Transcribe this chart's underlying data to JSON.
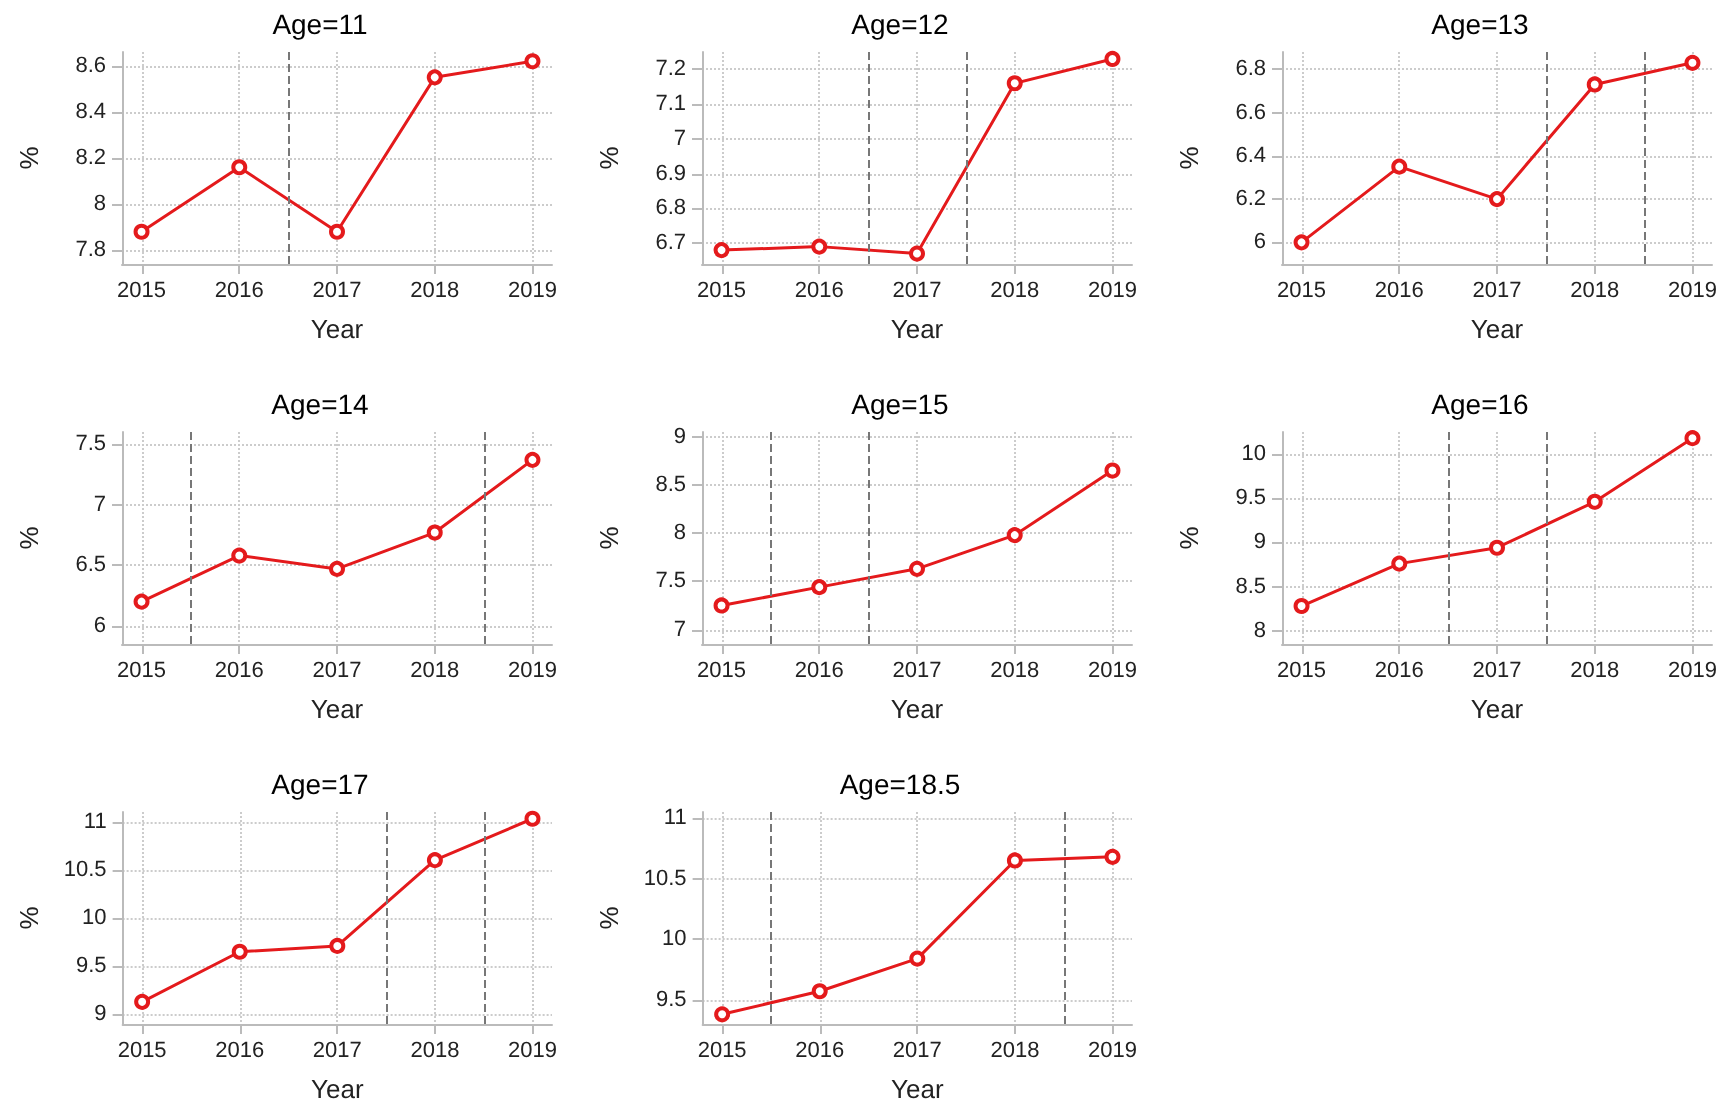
{
  "chart_data": [
    {
      "type": "line",
      "title": "Age=11",
      "xlabel": "Year",
      "ylabel": "%",
      "x": [
        2015,
        2016,
        2017,
        2018,
        2019
      ],
      "series": [
        {
          "color": "#e41a1c",
          "values": [
            7.88,
            8.16,
            7.88,
            8.55,
            8.62
          ]
        }
      ],
      "xlim": [
        2014.8,
        2019.2
      ],
      "xticks": [
        2015,
        2016,
        2017,
        2018,
        2019
      ],
      "ylim": [
        7.74,
        8.66
      ],
      "yticks": [
        7.8,
        8,
        8.2,
        8.4,
        8.6
      ],
      "grid": true,
      "marker": "circle",
      "line_style": "solid",
      "ref_lines": [
        {
          "axis": "x",
          "value": 2016.5,
          "color": "#777777",
          "line_style": "dashed"
        }
      ]
    },
    {
      "type": "line",
      "title": "Age=12",
      "xlabel": "Year",
      "ylabel": "%",
      "x": [
        2015,
        2016,
        2017,
        2018,
        2019
      ],
      "series": [
        {
          "color": "#e41a1c",
          "values": [
            6.68,
            6.69,
            6.67,
            7.16,
            7.23
          ]
        }
      ],
      "xlim": [
        2014.8,
        2019.2
      ],
      "xticks": [
        2015,
        2016,
        2017,
        2018,
        2019
      ],
      "ylim": [
        6.64,
        7.25
      ],
      "yticks": [
        6.7,
        6.8,
        6.9,
        7,
        7.1,
        7.2
      ],
      "grid": true,
      "marker": "circle",
      "line_style": "solid",
      "ref_lines": [
        {
          "axis": "x",
          "value": 2016.5,
          "color": "#777777",
          "line_style": "dashed"
        },
        {
          "axis": "x",
          "value": 2017.5,
          "color": "#777777",
          "line_style": "dashed"
        }
      ]
    },
    {
      "type": "line",
      "title": "Age=13",
      "xlabel": "Year",
      "ylabel": "%",
      "x": [
        2015,
        2016,
        2017,
        2018,
        2019
      ],
      "series": [
        {
          "color": "#e41a1c",
          "values": [
            6.0,
            6.35,
            6.2,
            6.73,
            6.83
          ]
        }
      ],
      "xlim": [
        2014.8,
        2019.2
      ],
      "xticks": [
        2015,
        2016,
        2017,
        2018,
        2019
      ],
      "ylim": [
        5.9,
        6.88
      ],
      "yticks": [
        6,
        6.2,
        6.4,
        6.6,
        6.8
      ],
      "grid": true,
      "marker": "circle",
      "line_style": "solid",
      "ref_lines": [
        {
          "axis": "x",
          "value": 2017.5,
          "color": "#777777",
          "line_style": "dashed"
        },
        {
          "axis": "x",
          "value": 2018.5,
          "color": "#777777",
          "line_style": "dashed"
        }
      ]
    },
    {
      "type": "line",
      "title": "Age=14",
      "xlabel": "Year",
      "ylabel": "%",
      "x": [
        2015,
        2016,
        2017,
        2018,
        2019
      ],
      "series": [
        {
          "color": "#e41a1c",
          "values": [
            6.2,
            6.58,
            6.47,
            6.77,
            7.37
          ]
        }
      ],
      "xlim": [
        2014.8,
        2019.2
      ],
      "xticks": [
        2015,
        2016,
        2017,
        2018,
        2019
      ],
      "ylim": [
        5.85,
        7.6
      ],
      "yticks": [
        6,
        6.5,
        7,
        7.5
      ],
      "grid": true,
      "marker": "circle",
      "line_style": "solid",
      "ref_lines": [
        {
          "axis": "x",
          "value": 2015.5,
          "color": "#777777",
          "line_style": "dashed"
        },
        {
          "axis": "x",
          "value": 2018.5,
          "color": "#777777",
          "line_style": "dashed"
        }
      ]
    },
    {
      "type": "line",
      "title": "Age=15",
      "xlabel": "Year",
      "ylabel": "%",
      "x": [
        2015,
        2016,
        2017,
        2018,
        2019
      ],
      "series": [
        {
          "color": "#e41a1c",
          "values": [
            7.25,
            7.44,
            7.63,
            7.98,
            8.65
          ]
        }
      ],
      "xlim": [
        2014.8,
        2019.2
      ],
      "xticks": [
        2015,
        2016,
        2017,
        2018,
        2019
      ],
      "ylim": [
        6.85,
        9.05
      ],
      "yticks": [
        7,
        7.5,
        8,
        8.5,
        9
      ],
      "grid": true,
      "marker": "circle",
      "line_style": "solid",
      "ref_lines": [
        {
          "axis": "x",
          "value": 2015.5,
          "color": "#777777",
          "line_style": "dashed"
        },
        {
          "axis": "x",
          "value": 2016.5,
          "color": "#777777",
          "line_style": "dashed"
        }
      ]
    },
    {
      "type": "line",
      "title": "Age=16",
      "xlabel": "Year",
      "ylabel": "%",
      "x": [
        2015,
        2016,
        2017,
        2018,
        2019
      ],
      "series": [
        {
          "color": "#e41a1c",
          "values": [
            8.28,
            8.76,
            8.94,
            9.46,
            10.18
          ]
        }
      ],
      "xlim": [
        2014.8,
        2019.2
      ],
      "xticks": [
        2015,
        2016,
        2017,
        2018,
        2019
      ],
      "ylim": [
        7.85,
        10.25
      ],
      "yticks": [
        8,
        8.5,
        9,
        9.5,
        10
      ],
      "grid": true,
      "marker": "circle",
      "line_style": "solid",
      "ref_lines": [
        {
          "axis": "x",
          "value": 2016.5,
          "color": "#777777",
          "line_style": "dashed"
        },
        {
          "axis": "x",
          "value": 2017.5,
          "color": "#777777",
          "line_style": "dashed"
        }
      ]
    },
    {
      "type": "line",
      "title": "Age=17",
      "xlabel": "Year",
      "ylabel": "%",
      "x": [
        2015,
        2016,
        2017,
        2018,
        2019
      ],
      "series": [
        {
          "color": "#e41a1c",
          "values": [
            9.13,
            9.65,
            9.71,
            10.6,
            11.03
          ]
        }
      ],
      "xlim": [
        2014.8,
        2019.2
      ],
      "xticks": [
        2015,
        2016,
        2017,
        2018,
        2019
      ],
      "ylim": [
        8.9,
        11.1
      ],
      "yticks": [
        9,
        9.5,
        10,
        10.5,
        11
      ],
      "grid": true,
      "marker": "circle",
      "line_style": "solid",
      "ref_lines": [
        {
          "axis": "x",
          "value": 2017.5,
          "color": "#777777",
          "line_style": "dashed"
        },
        {
          "axis": "x",
          "value": 2018.5,
          "color": "#777777",
          "line_style": "dashed"
        }
      ]
    },
    {
      "type": "line",
      "title": "Age=18.5",
      "xlabel": "Year",
      "ylabel": "%",
      "x": [
        2015,
        2016,
        2017,
        2018,
        2019
      ],
      "series": [
        {
          "color": "#e41a1c",
          "values": [
            9.38,
            9.57,
            9.84,
            10.65,
            10.68
          ]
        }
      ],
      "xlim": [
        2014.8,
        2019.2
      ],
      "xticks": [
        2015,
        2016,
        2017,
        2018,
        2019
      ],
      "ylim": [
        9.3,
        11.05
      ],
      "yticks": [
        9.5,
        10,
        10.5,
        11
      ],
      "grid": true,
      "marker": "circle",
      "line_style": "solid",
      "ref_lines": [
        {
          "axis": "x",
          "value": 2015.5,
          "color": "#777777",
          "line_style": "dashed"
        },
        {
          "axis": "x",
          "value": 2018.5,
          "color": "#777777",
          "line_style": "dashed"
        }
      ]
    }
  ]
}
